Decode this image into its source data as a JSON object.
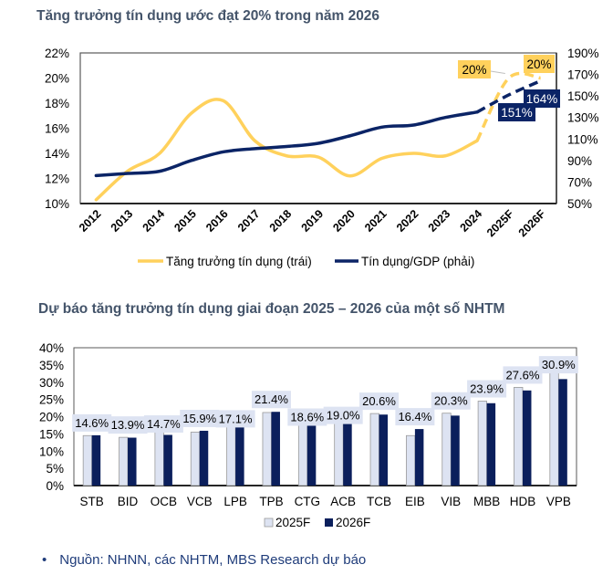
{
  "source_note": "Nguồn: NHNN, các NHTM, MBS Research dự báo",
  "bullet": "•",
  "chart_data": [
    {
      "type": "line",
      "title": "Tăng trưởng tín dụng ước đạt 20% trong năm 2026",
      "categories": [
        "2012",
        "2013",
        "2014",
        "2015",
        "2016",
        "2017",
        "2018",
        "2019",
        "2020",
        "2021",
        "2022",
        "2023",
        "2024",
        "2025F",
        "2026F"
      ],
      "series": [
        {
          "name": "Tăng trưởng tín dụng (trái)",
          "axis": "left",
          "color": "#ffd15c",
          "values": [
            10.3,
            12.6,
            14.0,
            17.2,
            18.2,
            15.0,
            13.8,
            13.7,
            12.2,
            13.6,
            14.0,
            13.8,
            15.0,
            20.0,
            20.0
          ],
          "forecast_from_index": 12,
          "data_labels": [
            {
              "index": 13,
              "text": "20%"
            },
            {
              "index": 14,
              "text": "20%"
            }
          ]
        },
        {
          "name": "Tín dụng/GDP (phải)",
          "axis": "right",
          "color": "#0b2466",
          "values": [
            76,
            78,
            80,
            90,
            98,
            101,
            103,
            106,
            113,
            121,
            123,
            130,
            135,
            151,
            164
          ],
          "forecast_from_index": 12,
          "data_labels": [
            {
              "index": 13,
              "text": "151%"
            },
            {
              "index": 14,
              "text": "164%"
            }
          ]
        }
      ],
      "left_axis": {
        "min": 10,
        "max": 22,
        "step": 2,
        "ticks": [
          "10%",
          "12%",
          "14%",
          "16%",
          "18%",
          "20%",
          "22%"
        ]
      },
      "right_axis": {
        "min": 50,
        "max": 190,
        "step": 20,
        "ticks": [
          "50%",
          "70%",
          "90%",
          "110%",
          "130%",
          "150%",
          "170%",
          "190%"
        ]
      },
      "legend": {
        "placement": "bottom",
        "entries": [
          "Tăng trưởng tín dụng (trái)",
          "Tín dụng/GDP (phải)"
        ]
      },
      "grid": false
    },
    {
      "type": "bar",
      "title": "Dự báo tăng trưởng tín dụng giai đoạn 2025 – 2026 của một số NHTM",
      "categories": [
        "STB",
        "BID",
        "OCB",
        "VCB",
        "LPB",
        "TPB",
        "CTG",
        "ACB",
        "TCB",
        "EIB",
        "VIB",
        "MBB",
        "HDB",
        "VPB"
      ],
      "series": [
        {
          "name": "2025F",
          "color": "#dde3f2",
          "values": [
            14.5,
            14.0,
            18.0,
            15.5,
            19.5,
            21.2,
            20.0,
            20.5,
            20.9,
            14.5,
            21.0,
            24.5,
            28.5,
            35.2
          ]
        },
        {
          "name": "2026F",
          "color": "#0b1f5c",
          "values": [
            14.6,
            13.9,
            14.7,
            15.9,
            17.1,
            21.4,
            18.6,
            19.0,
            20.6,
            16.4,
            20.3,
            23.9,
            27.6,
            30.9
          ]
        }
      ],
      "data_labels": [
        "14.6%",
        "13.9%",
        "14.7%",
        "15.9%",
        "17.1%",
        "21.4%",
        "18.6%",
        "19.0%",
        "20.6%",
        "16.4%",
        "20.3%",
        "23.9%",
        "27.6%",
        "30.9%"
      ],
      "y_axis": {
        "min": 0,
        "max": 40,
        "step": 5,
        "ticks": [
          "0%",
          "5%",
          "10%",
          "15%",
          "20%",
          "25%",
          "30%",
          "35%",
          "40%"
        ]
      },
      "legend": {
        "placement": "bottom",
        "entries": [
          "2025F",
          "2026F"
        ]
      },
      "grid": false
    }
  ]
}
